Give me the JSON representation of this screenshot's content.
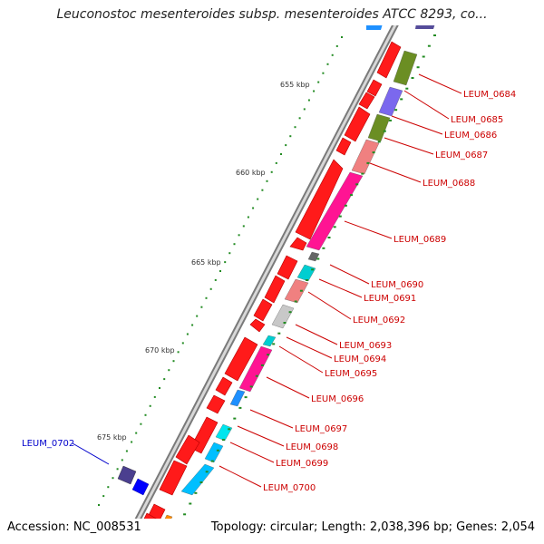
{
  "title": "Leuconostoc mesenteroides subsp. mesenteroides ATCC 8293, co...",
  "footer": {
    "accession": "Accession: NC_008531",
    "topology": "Topology: circular; Length: 2,038,396 bp; Genes: 2,054"
  },
  "colors": {
    "backbone": "#9a9a9a",
    "ticks": "#228b22",
    "label_forward": "#cc0000",
    "label_reverse": "#0000cc"
  },
  "scale_labels": [
    "655 kbp",
    "660 kbp",
    "665 kbp",
    "670 kbp",
    "675 kbp"
  ],
  "gene_labels": [
    {
      "text": "LEUM_0684",
      "strand": "forward"
    },
    {
      "text": "LEUM_0685",
      "strand": "forward"
    },
    {
      "text": "LEUM_0686",
      "strand": "forward"
    },
    {
      "text": "LEUM_0687",
      "strand": "forward"
    },
    {
      "text": "LEUM_0688",
      "strand": "forward"
    },
    {
      "text": "LEUM_0689",
      "strand": "forward"
    },
    {
      "text": "LEUM_0690",
      "strand": "forward"
    },
    {
      "text": "LEUM_0691",
      "strand": "forward"
    },
    {
      "text": "LEUM_0692",
      "strand": "forward"
    },
    {
      "text": "LEUM_0693",
      "strand": "forward"
    },
    {
      "text": "LEUM_0694",
      "strand": "forward"
    },
    {
      "text": "LEUM_0695",
      "strand": "forward"
    },
    {
      "text": "LEUM_0696",
      "strand": "forward"
    },
    {
      "text": "LEUM_0697",
      "strand": "forward"
    },
    {
      "text": "LEUM_0698",
      "strand": "forward"
    },
    {
      "text": "LEUM_0699",
      "strand": "forward"
    },
    {
      "text": "LEUM_0700",
      "strand": "forward"
    },
    {
      "text": "LEUM_0702",
      "strand": "reverse"
    }
  ]
}
